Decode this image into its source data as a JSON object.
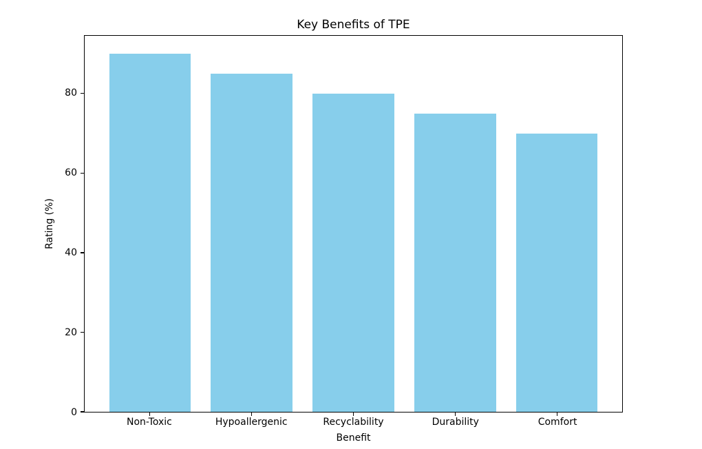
{
  "chart_data": {
    "type": "bar",
    "title": "Key Benefits of TPE",
    "xlabel": "Benefit",
    "ylabel": "Rating (%)",
    "categories": [
      "Non-Toxic",
      "Hypoallergenic",
      "Recyclability",
      "Durability",
      "Comfort"
    ],
    "values": [
      90,
      85,
      80,
      75,
      70
    ],
    "yticks": [
      0,
      20,
      40,
      60,
      80
    ],
    "ylim": [
      0,
      94.5
    ],
    "xlim": [
      -0.64,
      4.64
    ],
    "bar_width": 0.8,
    "bar_color": "#87CEEB",
    "spine_color": "#000000",
    "background_color": "#ffffff",
    "grid": false,
    "legend": null
  }
}
